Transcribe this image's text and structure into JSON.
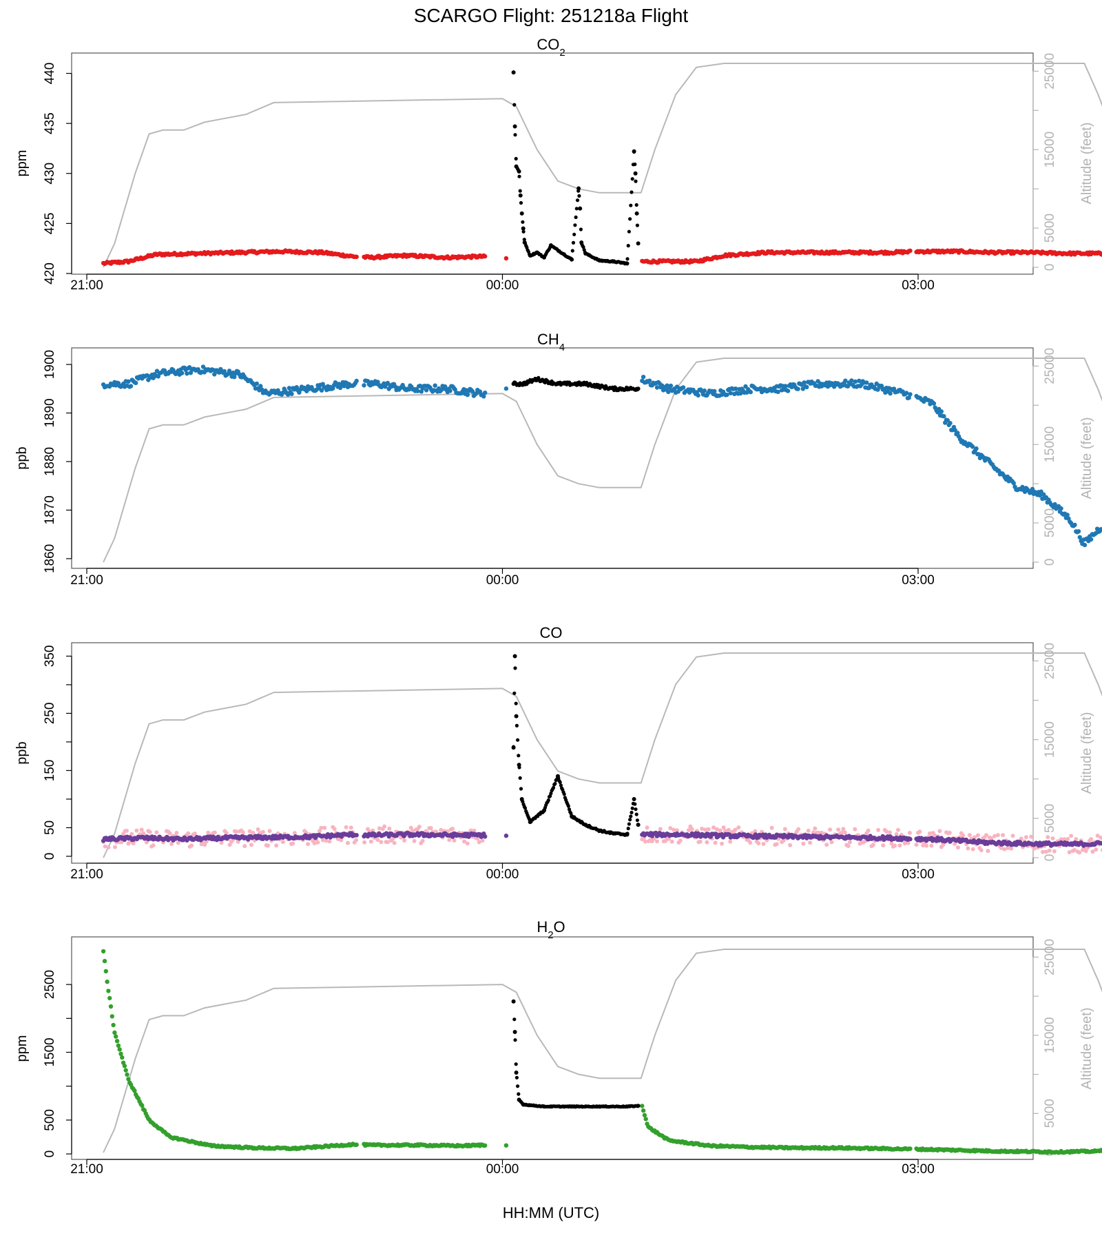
{
  "title": "SCARGO Flight: 251218a  Flight",
  "xlabel": "HH:MM (UTC)",
  "right_axis_label": "Altitude (feet)",
  "x_ticks": [
    "21:00",
    "00:00",
    "03:00"
  ],
  "alt_ticks": [
    "0",
    "5000",
    "15000",
    "25000"
  ],
  "colors": {
    "co2_series": "#e41a1c",
    "ch4_series": "#1f78b4",
    "co_series": "#6a3d9a",
    "co_raw": "#f8b4c0",
    "h2o_series": "#33a02c",
    "ground_series": "#000000",
    "altitude": "#b8b8b8"
  },
  "chart_data": [
    {
      "type": "scatter",
      "id": "co2",
      "title_main": "CO",
      "title_sub": "2",
      "ylabel": "ppm",
      "ylim": [
        420,
        441
      ],
      "y_ticks": [
        "420",
        "425",
        "430",
        "435",
        "440"
      ],
      "y_tick_values": [
        420,
        425,
        430,
        435,
        440
      ],
      "x_range_hours": [
        20.85,
        27.6
      ],
      "series": [
        {
          "name": "flight",
          "points": [
            [
              21.12,
              421.0
            ],
            [
              21.3,
              421.2
            ],
            [
              21.5,
              421.9
            ],
            [
              21.8,
              422.0
            ],
            [
              22.1,
              422.1
            ],
            [
              22.4,
              422.2
            ],
            [
              22.7,
              422.1
            ],
            [
              22.92,
              421.7
            ],
            [
              23.05,
              421.6
            ],
            [
              23.3,
              421.8
            ],
            [
              23.6,
              421.6
            ],
            [
              23.85,
              421.7
            ],
            [
              24.05,
              421.5
            ],
            [
              24.3,
              421.6
            ],
            [
              24.6,
              421.3
            ],
            [
              24.8,
              421.2
            ],
            [
              24.95,
              421.0
            ],
            [
              25.0,
              421.2
            ],
            [
              25.4,
              421.2
            ],
            [
              25.6,
              421.8
            ],
            [
              25.9,
              422.1
            ],
            [
              26.2,
              422.1
            ],
            [
              26.5,
              422.1
            ],
            [
              26.8,
              422.1
            ],
            [
              27.0,
              422.2
            ],
            [
              27.3,
              422.2
            ],
            [
              27.55,
              422.1
            ],
            [
              27.8,
              422.1
            ],
            [
              28.1,
              422.0
            ],
            [
              28.3,
              422.0
            ],
            [
              28.5,
              421.6
            ],
            [
              28.73,
              421.0
            ],
            [
              28.9,
              421.0
            ]
          ]
        },
        {
          "name": "ground",
          "points": [
            [
              24.08,
              440.1
            ],
            [
              24.09,
              434.7
            ],
            [
              24.1,
              430.7
            ],
            [
              24.12,
              430.2
            ],
            [
              24.13,
              427.8
            ],
            [
              24.14,
              426.0
            ],
            [
              24.15,
              424.5
            ],
            [
              24.16,
              423.1
            ],
            [
              24.2,
              421.8
            ],
            [
              24.25,
              422.1
            ],
            [
              24.3,
              421.6
            ],
            [
              24.35,
              422.8
            ],
            [
              24.5,
              421.4
            ],
            [
              24.55,
              428.5
            ],
            [
              24.56,
              426.5
            ],
            [
              24.57,
              423.1
            ],
            [
              24.6,
              422.0
            ],
            [
              24.7,
              421.3
            ],
            [
              24.8,
              421.2
            ],
            [
              24.9,
              421.0
            ],
            [
              24.95,
              432.2
            ],
            [
              24.96,
              430.0
            ],
            [
              24.97,
              426.0
            ],
            [
              24.98,
              423.0
            ]
          ]
        }
      ]
    },
    {
      "type": "scatter",
      "id": "ch4",
      "title_main": "CH",
      "title_sub": "4",
      "ylabel": "ppb",
      "ylim": [
        1859,
        1901
      ],
      "y_ticks": [
        "1860",
        "1870",
        "1880",
        "1890",
        "1900"
      ],
      "y_tick_values": [
        1860,
        1870,
        1880,
        1890,
        1900
      ],
      "series": [
        {
          "name": "flight",
          "points": [
            [
              21.12,
              1896
            ],
            [
              21.3,
              1896
            ],
            [
              21.5,
              1898
            ],
            [
              21.8,
              1899
            ],
            [
              22.1,
              1898
            ],
            [
              22.3,
              1894
            ],
            [
              22.6,
              1895
            ],
            [
              22.9,
              1896
            ],
            [
              23.1,
              1896
            ],
            [
              23.3,
              1895
            ],
            [
              23.6,
              1895
            ],
            [
              23.85,
              1894
            ],
            [
              24.05,
              1895
            ],
            [
              24.3,
              1896
            ],
            [
              24.5,
              1896
            ],
            [
              24.75,
              1897
            ],
            [
              24.95,
              1898
            ],
            [
              25.0,
              1897
            ],
            [
              25.2,
              1895
            ],
            [
              25.5,
              1894
            ],
            [
              25.8,
              1895
            ],
            [
              26.0,
              1895
            ],
            [
              26.3,
              1896
            ],
            [
              26.6,
              1896
            ],
            [
              26.9,
              1894
            ],
            [
              27.1,
              1892
            ],
            [
              27.3,
              1885
            ],
            [
              27.5,
              1880
            ],
            [
              27.7,
              1875
            ],
            [
              27.9,
              1873
            ],
            [
              28.1,
              1868
            ],
            [
              28.2,
              1863
            ],
            [
              28.3,
              1866
            ],
            [
              28.4,
              1868
            ],
            [
              28.45,
              1879
            ],
            [
              28.55,
              1895
            ],
            [
              28.65,
              1897
            ],
            [
              28.8,
              1897
            ],
            [
              29.05,
              1896
            ],
            [
              29.2,
              1894
            ]
          ]
        },
        {
          "name": "ground",
          "points": [
            [
              24.08,
              1896
            ],
            [
              24.15,
              1896
            ],
            [
              24.25,
              1897
            ],
            [
              24.4,
              1896
            ],
            [
              24.6,
              1896
            ],
            [
              24.8,
              1895
            ],
            [
              24.98,
              1895
            ]
          ]
        }
      ]
    },
    {
      "type": "scatter",
      "id": "co",
      "title_main": "CO",
      "title_sub": "",
      "ylabel": "ppb",
      "ylim": [
        0,
        365
      ],
      "y_ticks": [
        "0",
        "50",
        "150",
        "250",
        "350"
      ],
      "y_tick_values": [
        0,
        50,
        150,
        250,
        350
      ],
      "series": [
        {
          "name": "flight",
          "points": [
            [
              21.12,
              30
            ],
            [
              21.4,
              32
            ],
            [
              21.7,
              30
            ],
            [
              22.0,
              32
            ],
            [
              22.3,
              33
            ],
            [
              22.6,
              34
            ],
            [
              22.92,
              38
            ],
            [
              23.05,
              37
            ],
            [
              23.35,
              38
            ],
            [
              23.65,
              37
            ],
            [
              23.95,
              37
            ],
            [
              24.05,
              36
            ],
            [
              24.3,
              36
            ],
            [
              24.6,
              34
            ],
            [
              24.9,
              33
            ],
            [
              25.0,
              38
            ],
            [
              25.3,
              38
            ],
            [
              25.6,
              36
            ],
            [
              25.9,
              35
            ],
            [
              26.2,
              34
            ],
            [
              26.5,
              33
            ],
            [
              26.8,
              32
            ],
            [
              27.1,
              30
            ],
            [
              27.3,
              27
            ],
            [
              27.5,
              24
            ],
            [
              27.8,
              22
            ],
            [
              28.1,
              21
            ],
            [
              28.3,
              22
            ],
            [
              28.5,
              28
            ],
            [
              28.7,
              35
            ],
            [
              28.9,
              33
            ],
            [
              29.2,
              30
            ]
          ]
        },
        {
          "name": "ground",
          "points": [
            [
              24.08,
              190
            ],
            [
              24.09,
              350
            ],
            [
              24.1,
              245
            ],
            [
              24.12,
              160
            ],
            [
              24.14,
              100
            ],
            [
              24.2,
              60
            ],
            [
              24.3,
              80
            ],
            [
              24.4,
              140
            ],
            [
              24.5,
              70
            ],
            [
              24.6,
              55
            ],
            [
              24.7,
              45
            ],
            [
              24.8,
              40
            ],
            [
              24.9,
              38
            ],
            [
              24.95,
              100
            ],
            [
              24.98,
              55
            ]
          ]
        }
      ]
    },
    {
      "type": "scatter",
      "id": "h2o",
      "title_main": "H",
      "title_sub": "2",
      "title_tail": "O",
      "ylabel": "ppm",
      "ylim": [
        -50,
        3050
      ],
      "y_ticks": [
        "0",
        "500",
        "1500",
        "2500"
      ],
      "y_tick_values": [
        0,
        500,
        1500,
        2500
      ],
      "series": [
        {
          "name": "flight",
          "points": [
            [
              21.12,
              2980
            ],
            [
              21.15,
              2500
            ],
            [
              21.2,
              1800
            ],
            [
              21.3,
              1100
            ],
            [
              21.45,
              500
            ],
            [
              21.6,
              250
            ],
            [
              21.9,
              120
            ],
            [
              22.2,
              90
            ],
            [
              22.5,
              80
            ],
            [
              22.92,
              140
            ],
            [
              23.05,
              130
            ],
            [
              23.4,
              130
            ],
            [
              23.7,
              120
            ],
            [
              23.85,
              130
            ],
            [
              24.05,
              120
            ],
            [
              24.3,
              150
            ],
            [
              24.45,
              250
            ],
            [
              24.6,
              400
            ],
            [
              24.7,
              380
            ],
            [
              24.75,
              900
            ],
            [
              24.98,
              900
            ],
            [
              25.0,
              780
            ],
            [
              25.05,
              400
            ],
            [
              25.2,
              200
            ],
            [
              25.5,
              120
            ],
            [
              25.8,
              100
            ],
            [
              26.1,
              90
            ],
            [
              26.4,
              90
            ],
            [
              26.7,
              80
            ],
            [
              27.0,
              70
            ],
            [
              27.3,
              55
            ],
            [
              27.6,
              40
            ],
            [
              28.0,
              30
            ],
            [
              28.3,
              40
            ],
            [
              28.5,
              150
            ],
            [
              28.7,
              300
            ],
            [
              28.9,
              1100
            ],
            [
              29.0,
              1600
            ],
            [
              29.1,
              2300
            ],
            [
              29.2,
              2950
            ]
          ]
        },
        {
          "name": "ground",
          "points": [
            [
              24.08,
              2250
            ],
            [
              24.09,
              1800
            ],
            [
              24.1,
              1200
            ],
            [
              24.12,
              800
            ],
            [
              24.15,
              730
            ],
            [
              24.3,
              700
            ],
            [
              24.5,
              700
            ],
            [
              24.7,
              700
            ],
            [
              24.9,
              700
            ],
            [
              24.98,
              710
            ]
          ]
        }
      ]
    }
  ],
  "altitude_profile": [
    [
      21.12,
      0
    ],
    [
      21.2,
      3000
    ],
    [
      21.35,
      12000
    ],
    [
      21.45,
      17000
    ],
    [
      21.55,
      17500
    ],
    [
      21.7,
      17500
    ],
    [
      21.85,
      18500
    ],
    [
      22.0,
      19000
    ],
    [
      22.15,
      19500
    ],
    [
      22.35,
      21000
    ],
    [
      24.0,
      21500
    ],
    [
      24.1,
      20500
    ],
    [
      24.25,
      15000
    ],
    [
      24.4,
      11000
    ],
    [
      24.55,
      10000
    ],
    [
      24.7,
      9500
    ],
    [
      24.9,
      9500
    ],
    [
      25.0,
      9500
    ],
    [
      25.1,
      15000
    ],
    [
      25.25,
      22000
    ],
    [
      25.4,
      25500
    ],
    [
      25.6,
      26000
    ],
    [
      28.2,
      26000
    ],
    [
      28.3,
      22000
    ],
    [
      28.45,
      15000
    ],
    [
      28.55,
      7000
    ],
    [
      28.65,
      3000
    ],
    [
      28.75,
      1000
    ],
    [
      28.8,
      2000
    ],
    [
      28.88,
      0
    ]
  ]
}
